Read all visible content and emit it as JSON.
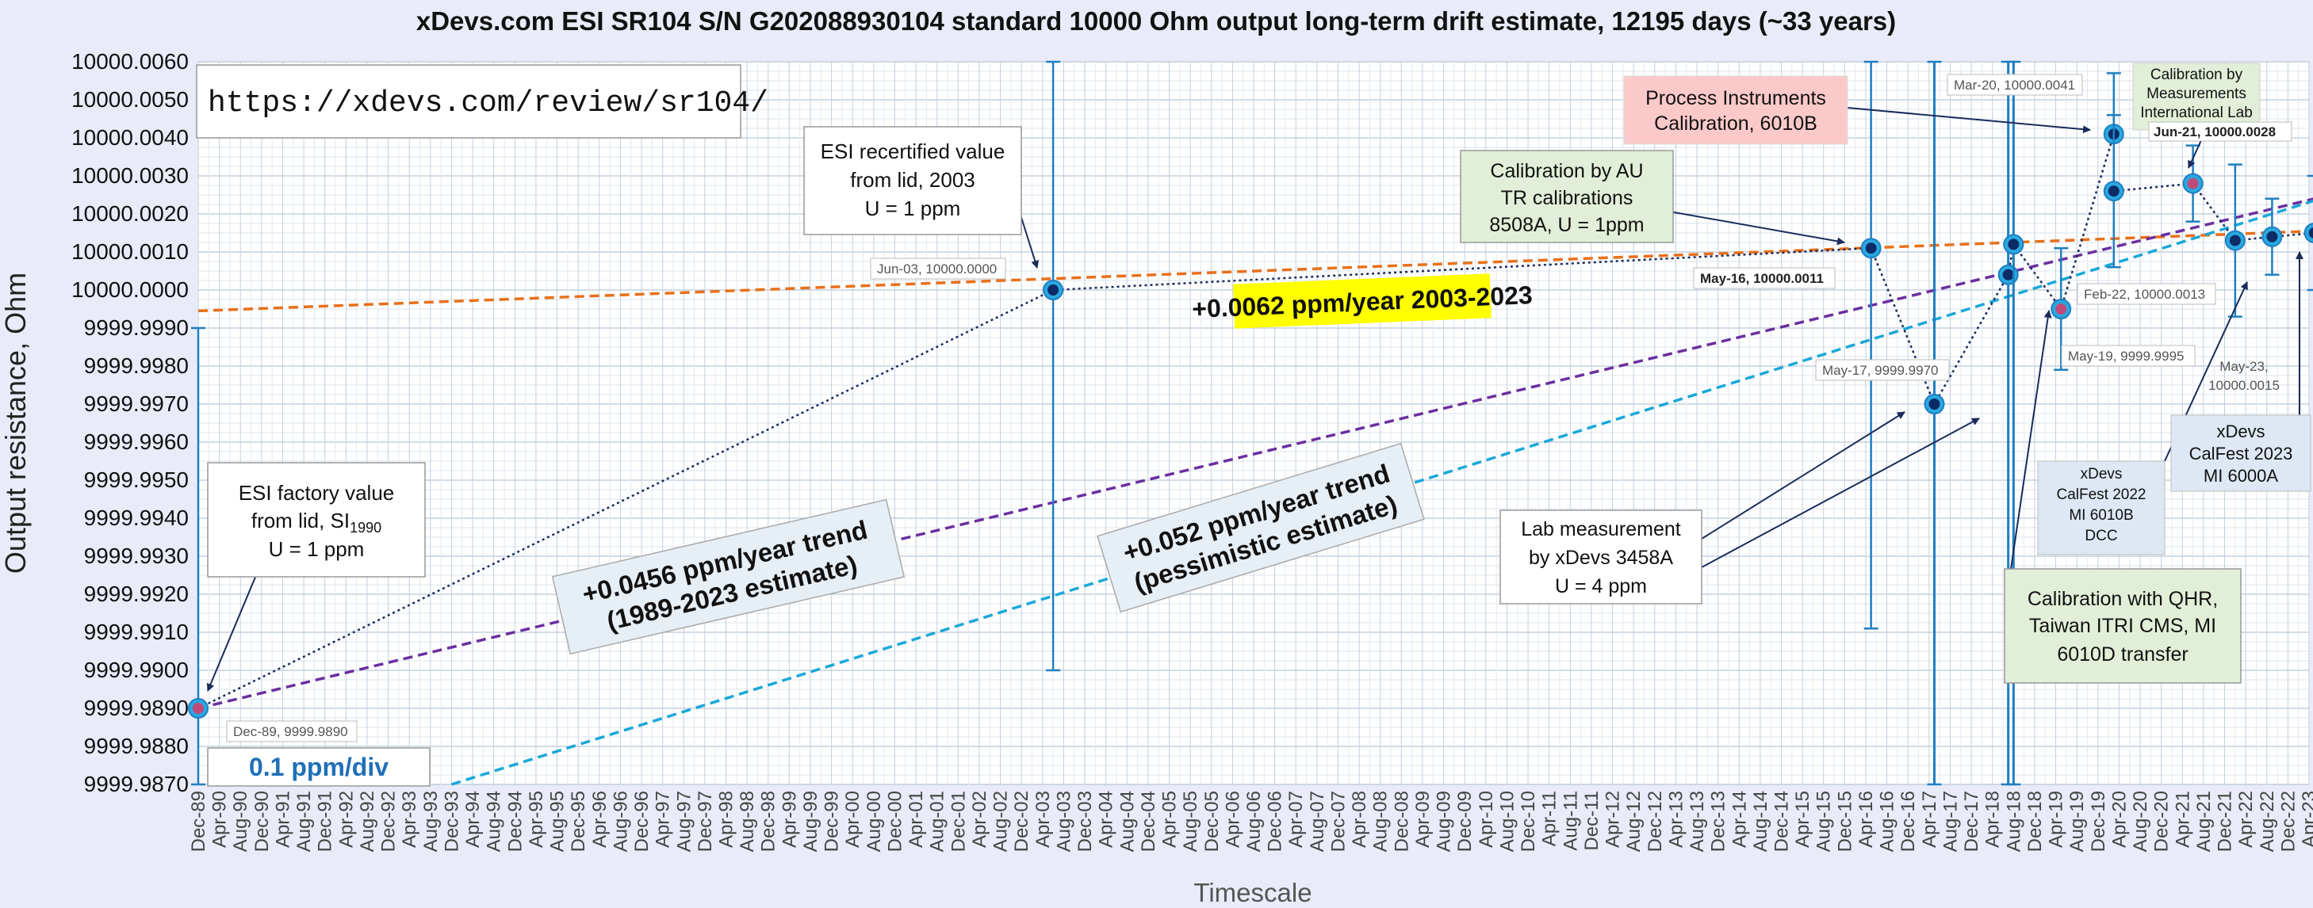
{
  "chart_data": {
    "type": "scatter",
    "title": "xDevs.com ESI SR104 S/N G202088930104 standard 10000 Ohm output long-term drift estimate, 12195 days (~33 years)",
    "xlabel": "Timescale",
    "ylabel": "Output resistance, Ohm",
    "ylim": [
      9999.987,
      10000.006
    ],
    "ytick_step": 0.001,
    "ytick_decimals": 4,
    "xrange": [
      "1989-12",
      "2023-04"
    ],
    "xtick_labels": [
      "Dec-89",
      "Apr-90",
      "Aug-90",
      "Dec-90",
      "Apr-91",
      "Aug-91",
      "Dec-91",
      "Apr-92",
      "Aug-92",
      "Dec-92",
      "Apr-93",
      "Aug-93",
      "Dec-93",
      "Apr-94",
      "Aug-94",
      "Dec-94",
      "Apr-95",
      "Aug-95",
      "Dec-95",
      "Apr-96",
      "Aug-96",
      "Dec-96",
      "Apr-97",
      "Aug-97",
      "Dec-97",
      "Apr-98",
      "Aug-98",
      "Dec-98",
      "Apr-99",
      "Aug-99",
      "Dec-99",
      "Apr-00",
      "Aug-00",
      "Dec-00",
      "Apr-01",
      "Aug-01",
      "Dec-01",
      "Apr-02",
      "Aug-02",
      "Dec-02",
      "Apr-03",
      "Aug-03",
      "Dec-03",
      "Apr-04",
      "Aug-04",
      "Dec-04",
      "Apr-05",
      "Aug-05",
      "Dec-05",
      "Apr-06",
      "Aug-06",
      "Dec-06",
      "Apr-07",
      "Aug-07",
      "Dec-07",
      "Apr-08",
      "Aug-08",
      "Dec-08",
      "Apr-09",
      "Aug-09",
      "Dec-09",
      "Apr-10",
      "Aug-10",
      "Dec-10",
      "Apr-11",
      "Aug-11",
      "Dec-11",
      "Apr-12",
      "Aug-12",
      "Dec-12",
      "Apr-13",
      "Aug-13",
      "Dec-13",
      "Apr-14",
      "Aug-14",
      "Dec-14",
      "Apr-15",
      "Aug-15",
      "Dec-15",
      "Apr-16",
      "Aug-16",
      "Dec-16",
      "Apr-17",
      "Aug-17",
      "Dec-17",
      "Apr-18",
      "Aug-18",
      "Dec-18",
      "Apr-19",
      "Aug-19",
      "Dec-19",
      "Apr-20",
      "Aug-20",
      "Dec-20",
      "Apr-21",
      "Aug-21",
      "Dec-21",
      "Apr-22",
      "Aug-22",
      "Dec-22",
      "Apr-23"
    ],
    "grid": true,
    "series": [
      {
        "name": "",
        "color": "#1f7fc1",
        "points": [
          {
            "x": "1989-12",
            "y": 9999.989,
            "err": 0.01,
            "marker": "pink"
          },
          {
            "x": "2003-06",
            "y": 10000.0,
            "err": 0.01,
            "marker": "dark"
          },
          {
            "x": "2016-05",
            "y": 10000.0011,
            "err": 0.01,
            "marker": "dark"
          },
          {
            "x": "2017-05",
            "y": 9999.997,
            "err": 0.04,
            "marker": "dark"
          },
          {
            "x": "2018-07",
            "y": 10000.0004,
            "err": 0.04,
            "marker": "dark"
          },
          {
            "x": "2018-08",
            "y": 10000.0012,
            "err": 0.04,
            "marker": "dark"
          },
          {
            "x": "2019-05",
            "y": 9999.9995,
            "err": 0.0016,
            "marker": "pink"
          },
          {
            "x": "2020-03",
            "y": 10000.0041,
            "err": 0.0016,
            "marker": "dark"
          },
          {
            "x": "2020-03",
            "y": 10000.0026,
            "err": 0.002,
            "marker": "dark"
          },
          {
            "x": "2021-06",
            "y": 10000.0028,
            "err": 0.001,
            "marker": "pink"
          },
          {
            "x": "2022-02",
            "y": 10000.0013,
            "err": 0.002,
            "marker": "dark"
          },
          {
            "x": "2022-09",
            "y": 10000.0014,
            "err": 0.001,
            "marker": "dark"
          },
          {
            "x": "2023-05",
            "y": 10000.0015,
            "err": 0.0015,
            "marker": "dark"
          }
        ]
      }
    ],
    "trend_lines": [
      {
        "color": "#e8701a",
        "from": {
          "x": "1989-12",
          "y": 9999.99945
        },
        "to": {
          "x": "2023-05",
          "y": 10000.00155
        }
      },
      {
        "color": "#6b2fa0",
        "from": {
          "x": "1989-12",
          "y": 9999.989
        },
        "to": {
          "x": "2023-05",
          "y": 10000.0024
        }
      },
      {
        "color": "#1aa8d8",
        "from": {
          "x": "1993-12",
          "y": 9999.987
        },
        "to": {
          "x": "2023-05",
          "y": 10000.00235
        }
      }
    ],
    "vertical_markers": [
      {
        "x": "2017-05",
        "color": "#1f7fc1"
      },
      {
        "x": "2018-07",
        "color": "#1f7fc1"
      },
      {
        "x": "2018-08",
        "color": "#1f7fc1"
      }
    ],
    "annotations": {
      "url": "https://xdevs.com/review/sr104/",
      "scale": "0.1 ppm/div",
      "esi_factory": {
        "line1": "ESI factory value",
        "line2": "from lid, SI",
        "sub": "1990",
        "line3": "U = 1 ppm"
      },
      "esi_recert": [
        "ESI recertified value",
        "from lid, 2003",
        "U = 1 ppm"
      ],
      "process_instruments": [
        "Process Instruments",
        "Calibration, 6010B"
      ],
      "au_tr": [
        "Calibration by AU",
        "TR calibrations",
        "8508A, U = 1ppm"
      ],
      "mil_lab": [
        "Calibration by",
        "Measurements",
        "International Lab"
      ],
      "lab_meas": [
        "Lab measurement",
        "by xDevs 3458A",
        "U = 4 ppm"
      ],
      "calfest2022": [
        "xDevs",
        "CalFest 2022",
        "MI 6010B",
        "DCC"
      ],
      "calfest2023": [
        "xDevs",
        "CalFest 2023",
        "MI 6000A"
      ],
      "qhr": [
        "Calibration with QHR,",
        "Taiwan ITRI CMS, MI",
        "6010D transfer"
      ],
      "trend_a": "+0.0062 ppm/year 2003-2023",
      "trend_b": [
        "+0.0456 ppm/year trend",
        "(1989-2023 estimate)"
      ],
      "trend_c": [
        "+0.052 ppm/year trend",
        "(pessimistic estimate)"
      ],
      "labels": {
        "dec89": "Dec-89, 9999.9890",
        "jun03": "Jun-03, 10000.0000",
        "may16": "May-16, 10000.0011",
        "may17": "May-17, 9999.9970",
        "mar20": "Mar-20, 10000.0041",
        "jun21": "Jun-21, 10000.0028",
        "feb22": "Feb-22, 10000.0013",
        "may19": "May-19, 9999.9995",
        "may23a": "May-23,",
        "may23b": "10000.0015"
      }
    }
  }
}
